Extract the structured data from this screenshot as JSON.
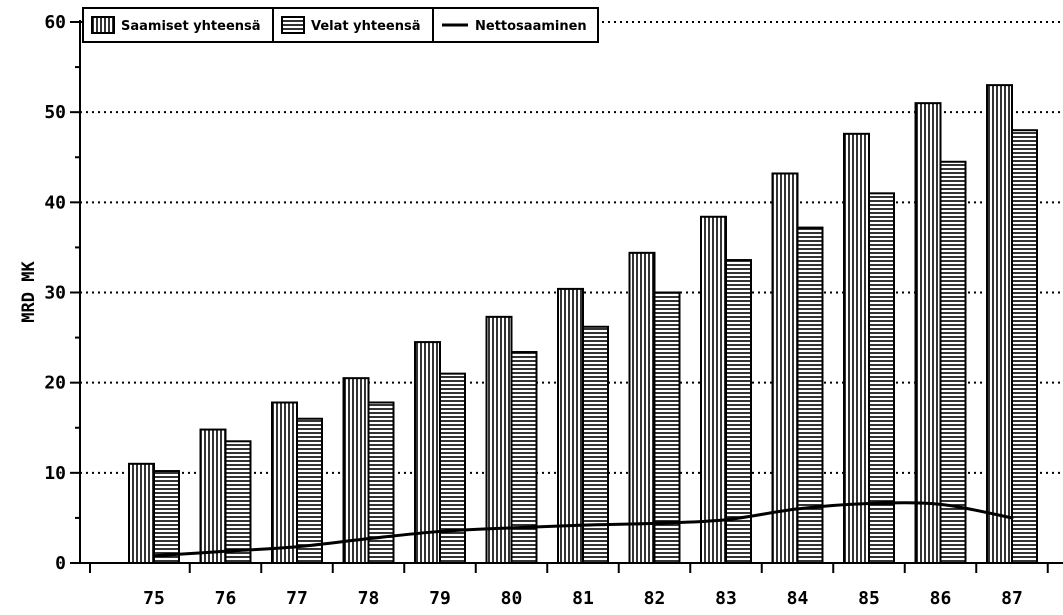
{
  "chart_data": {
    "type": "bar",
    "ylabel": "MRD MK",
    "xlabel": "",
    "ylim": [
      0,
      60
    ],
    "yticks": [
      0,
      10,
      20,
      30,
      40,
      50,
      60
    ],
    "grid": "horizontal dotted",
    "legend_position": "top-left",
    "categories": [
      "75",
      "76",
      "77",
      "78",
      "79",
      "80",
      "81",
      "82",
      "83",
      "84",
      "85",
      "86",
      "87"
    ],
    "series": [
      {
        "name": "Saamiset yhteensä",
        "kind": "bar",
        "pattern": "vertical-hatch",
        "values": [
          11,
          14.8,
          17.8,
          20.5,
          24.5,
          27.3,
          30.4,
          34.4,
          38.4,
          43.2,
          47.6,
          51,
          53
        ]
      },
      {
        "name": "Velat yhteensä",
        "kind": "bar",
        "pattern": "horizontal-hatch",
        "values": [
          10.2,
          13.5,
          16,
          17.8,
          21,
          23.4,
          26.2,
          30,
          33.6,
          37.2,
          41,
          44.5,
          48
        ]
      },
      {
        "name": "Nettosaaminen",
        "kind": "line",
        "values": [
          0.8,
          1.3,
          1.8,
          2.7,
          3.5,
          3.9,
          4.2,
          4.4,
          4.8,
          6,
          6.6,
          6.5,
          5
        ]
      }
    ],
    "colors": {
      "ink": "#000000",
      "background": "#ffffff"
    }
  }
}
